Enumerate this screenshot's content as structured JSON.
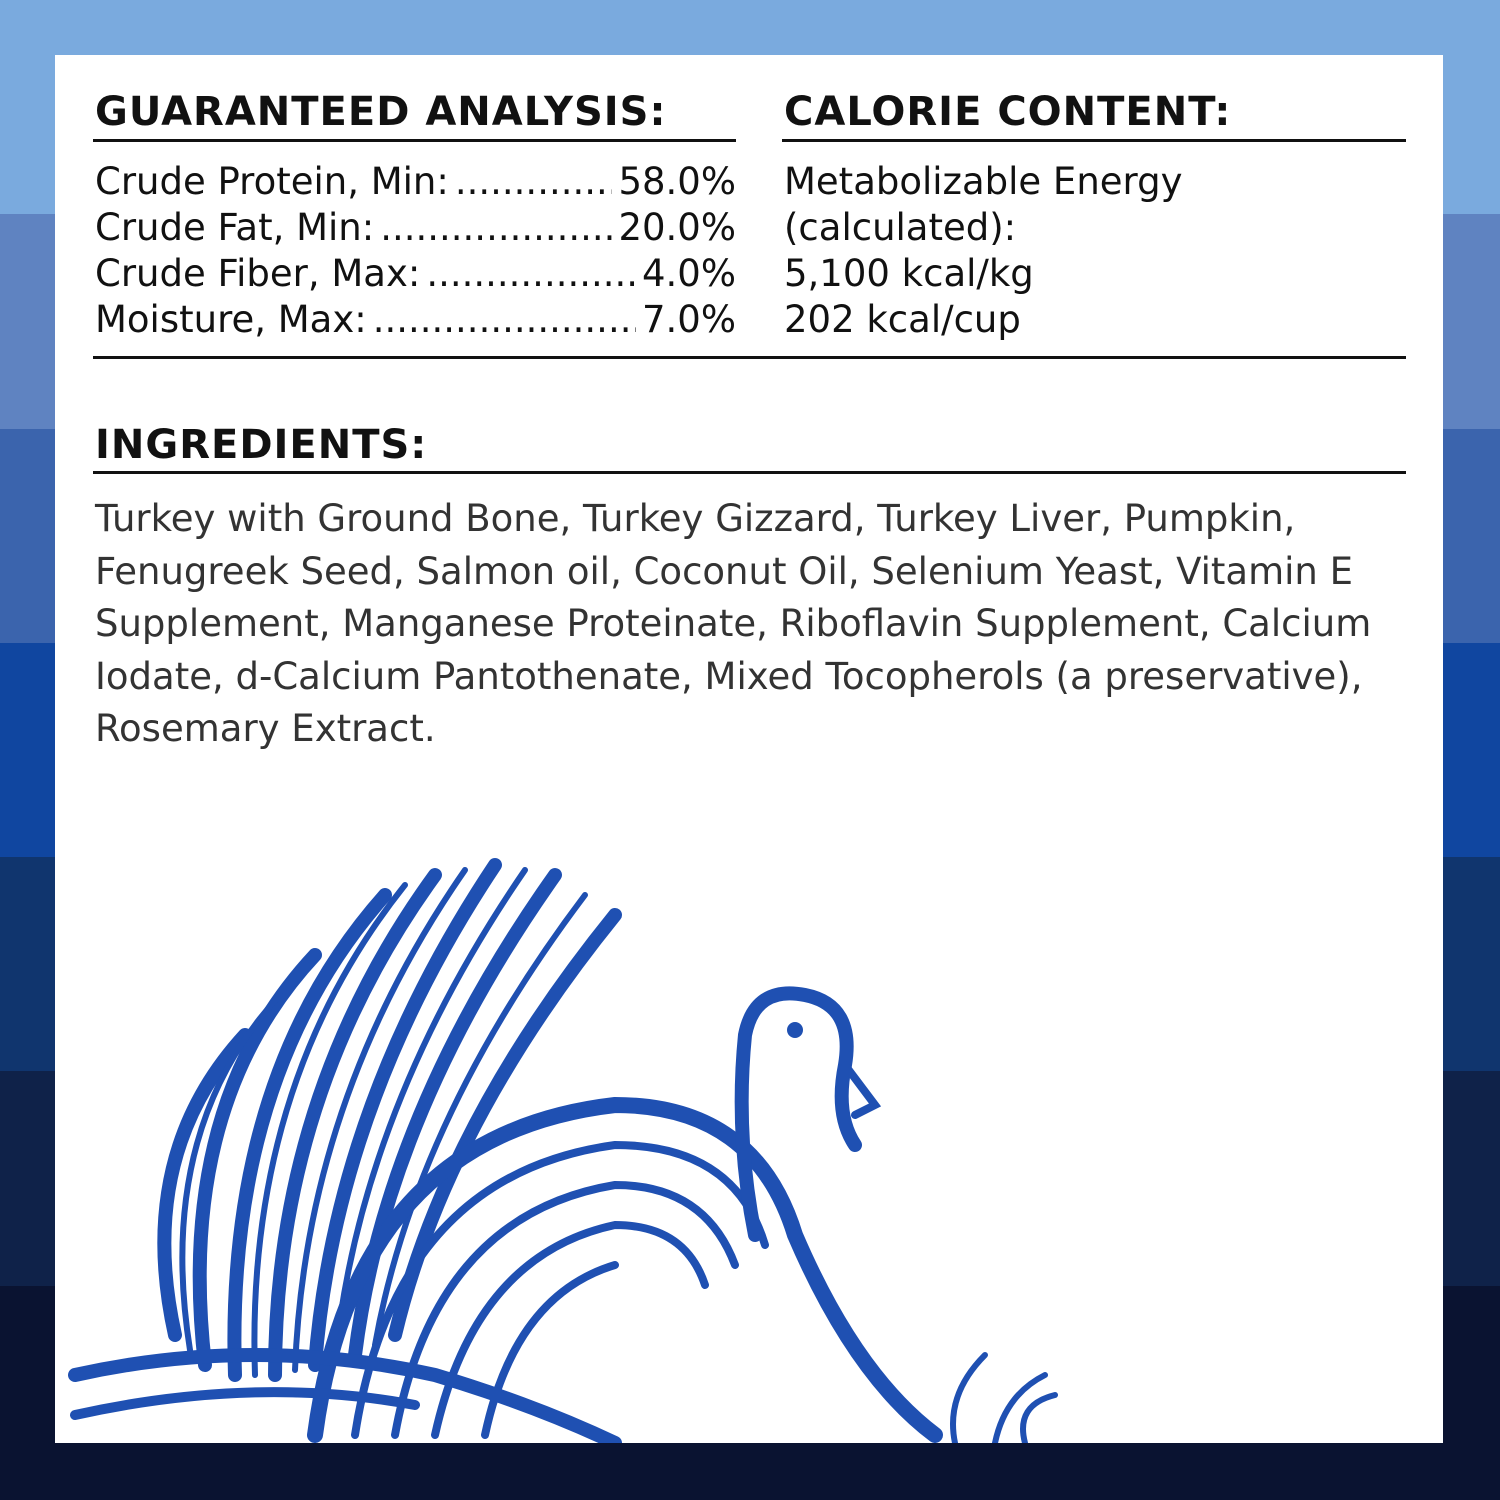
{
  "colors": {
    "bands": [
      "#7aaade",
      "#5f83c1",
      "#3b64ad",
      "#1046a0",
      "#10356e",
      "#0f2249",
      "#0a1331"
    ],
    "illustration": "#1f50b2",
    "panel": "#ffffff"
  },
  "analysis": {
    "title": "GUARANTEED ANALYSIS:",
    "rows": [
      {
        "label": "Crude Protein, Min:",
        "value": "58.0%"
      },
      {
        "label": "Crude Fat, Min:",
        "value": "20.0%"
      },
      {
        "label": "Crude Fiber, Max:",
        "value": "4.0%"
      },
      {
        "label": "Moisture, Max:",
        "value": "7.0%"
      }
    ]
  },
  "calorie": {
    "title": "CALORIE CONTENT:",
    "lines": [
      "Metabolizable Energy",
      "(calculated):",
      "5,100 kcal/kg",
      "202 kcal/cup"
    ]
  },
  "ingredients": {
    "title": "INGREDIENTS:",
    "text": "Turkey with Ground Bone, Turkey Gizzard, Turkey Liver, Pumpkin, Fenugreek Seed, Salmon oil, Coconut Oil, Selenium Yeast, Vitamin E Supplement, Manganese Proteinate, Riboflavin Supplement, Calcium Iodate, d-Calcium Pantothenate, Mixed Tocopherols (a preservative), Rosemary Extract."
  },
  "illustration": {
    "icon": "turkey-illustration"
  }
}
